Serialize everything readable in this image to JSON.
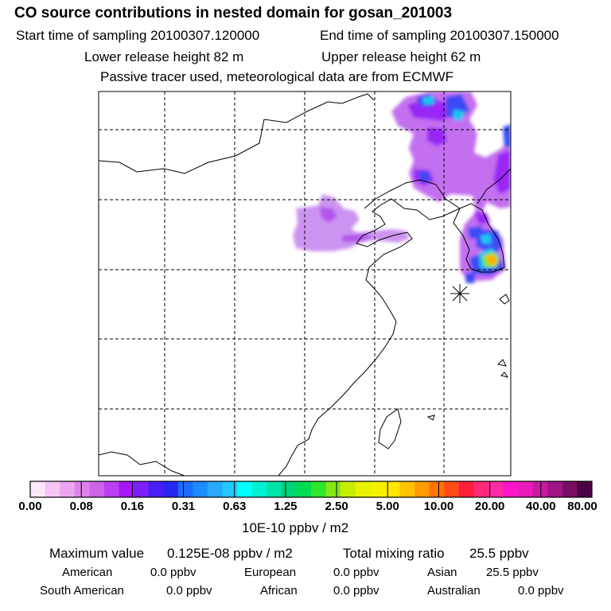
{
  "header": {
    "title": "CO  source contributions in nested domain for gosan_201003",
    "start_time": "Start time of sampling 20100307.120000",
    "end_time": "End time of sampling 20100307.150000",
    "lower_release": "Lower release height   82 m",
    "upper_release": "Upper release height   62 m",
    "note": "Passive tracer used, meteorological data are from ECMWF"
  },
  "colorbar": {
    "ticks": [
      "0.00",
      "0.08",
      "0.16",
      "0.31",
      "0.63",
      "1.25",
      "2.50",
      "5.00",
      "10.00",
      "20.00",
      "40.00",
      "80.00"
    ],
    "colors": [
      "#fde8fb",
      "#f5c6f5",
      "#eba5f0",
      "#de82ea",
      "#cc63e8",
      "#bb3ff0",
      "#a517fa",
      "#7d20f8",
      "#4a1ff5",
      "#2727f3",
      "#1e6bff",
      "#1c8cff",
      "#2aa8ff",
      "#22c8ff",
      "#00ffff",
      "#00f0d0",
      "#00e2a6",
      "#00d27a",
      "#00dc50",
      "#2ee62a",
      "#84e814",
      "#c7ee00",
      "#e7f200",
      "#f5f000",
      "#ffe600",
      "#ffc300",
      "#ff9a00",
      "#ff7300",
      "#ff4c1a",
      "#ff1e3c",
      "#ff2a78",
      "#ff2aa6",
      "#ff14c8",
      "#e81cb8",
      "#c818a0",
      "#a01486",
      "#7a0c64",
      "#4a0042"
    ],
    "units": "10E-10 ppbv / m2"
  },
  "summary": {
    "max_label": "Maximum value",
    "max_value": "0.125E-08 ppbv / m2",
    "total_label": "Total mixing ratio",
    "total_value": "25.5 ppbv",
    "regions": [
      {
        "name": "American",
        "value": "0.0 ppbv"
      },
      {
        "name": "European",
        "value": "0.0 ppbv"
      },
      {
        "name": "Asian",
        "value": "25.5 ppbv"
      },
      {
        "name": "South American",
        "value": "0.0 ppbv"
      },
      {
        "name": "African",
        "value": "0.0 ppbv"
      },
      {
        "name": "Australian",
        "value": "0.0 ppbv"
      }
    ]
  }
}
